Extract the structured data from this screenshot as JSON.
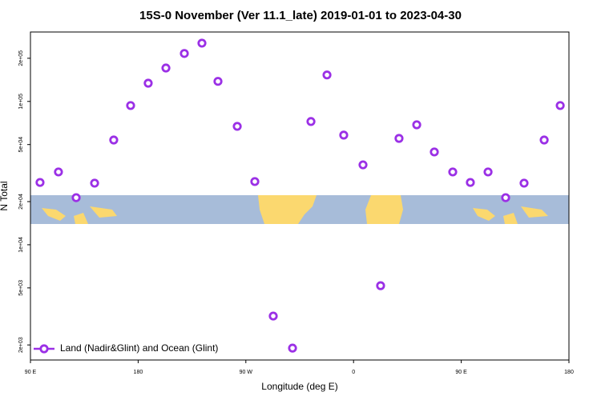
{
  "chart_data": {
    "type": "scatter",
    "log_y": true,
    "title": "15S-0 November (Ver 11.1_late)   2019-01-01 to 2023-04-30",
    "x_label": "Longitude (deg E)",
    "y_label": "N Total",
    "xlim": [
      90,
      540
    ],
    "xticks": [
      {
        "value": 90,
        "label": "90 E"
      },
      {
        "value": 180,
        "label": "180"
      },
      {
        "value": 270,
        "label": "90 W"
      },
      {
        "value": 360,
        "label": "0"
      },
      {
        "value": 450,
        "label": "90 E"
      },
      {
        "value": 540,
        "label": "180"
      }
    ],
    "ylim": [
      1570,
      305000
    ],
    "yticks": [
      {
        "value": 2000,
        "label": "2e+03"
      },
      {
        "value": 5000,
        "label": "5e+03"
      },
      {
        "value": 10000,
        "label": "1e+04"
      },
      {
        "value": 20000,
        "label": "2e+04"
      },
      {
        "value": 50000,
        "label": "5e+04"
      },
      {
        "value": 100000,
        "label": "1e+05"
      },
      {
        "value": 200000,
        "label": "2e+05"
      }
    ],
    "legend_position": "bottom-left",
    "series": [
      {
        "name": "Land (Nadir&Glint) and Ocean (Glint)",
        "color": "#9b30e6",
        "x": [
          98.0,
          113.4,
          128.2,
          143.6,
          159.6,
          173.7,
          188.4,
          203.2,
          218.6,
          233.3,
          246.7,
          262.8,
          277.5,
          292.9,
          309.0,
          324.4,
          337.8,
          351.8,
          367.9,
          382.6,
          398.0,
          412.8,
          427.5,
          442.9,
          457.6,
          472.4,
          487.1,
          502.5,
          519.3,
          532.7
        ],
        "values": [
          27200,
          32200,
          21300,
          26900,
          53800,
          93600,
          134000,
          171000,
          216000,
          255000,
          138000,
          67000,
          27600,
          3180,
          1900,
          72400,
          153000,
          58200,
          36100,
          5180,
          55200,
          68700,
          44400,
          32200,
          27200,
          32200,
          21300,
          26900,
          53800,
          93600
        ]
      }
    ]
  }
}
